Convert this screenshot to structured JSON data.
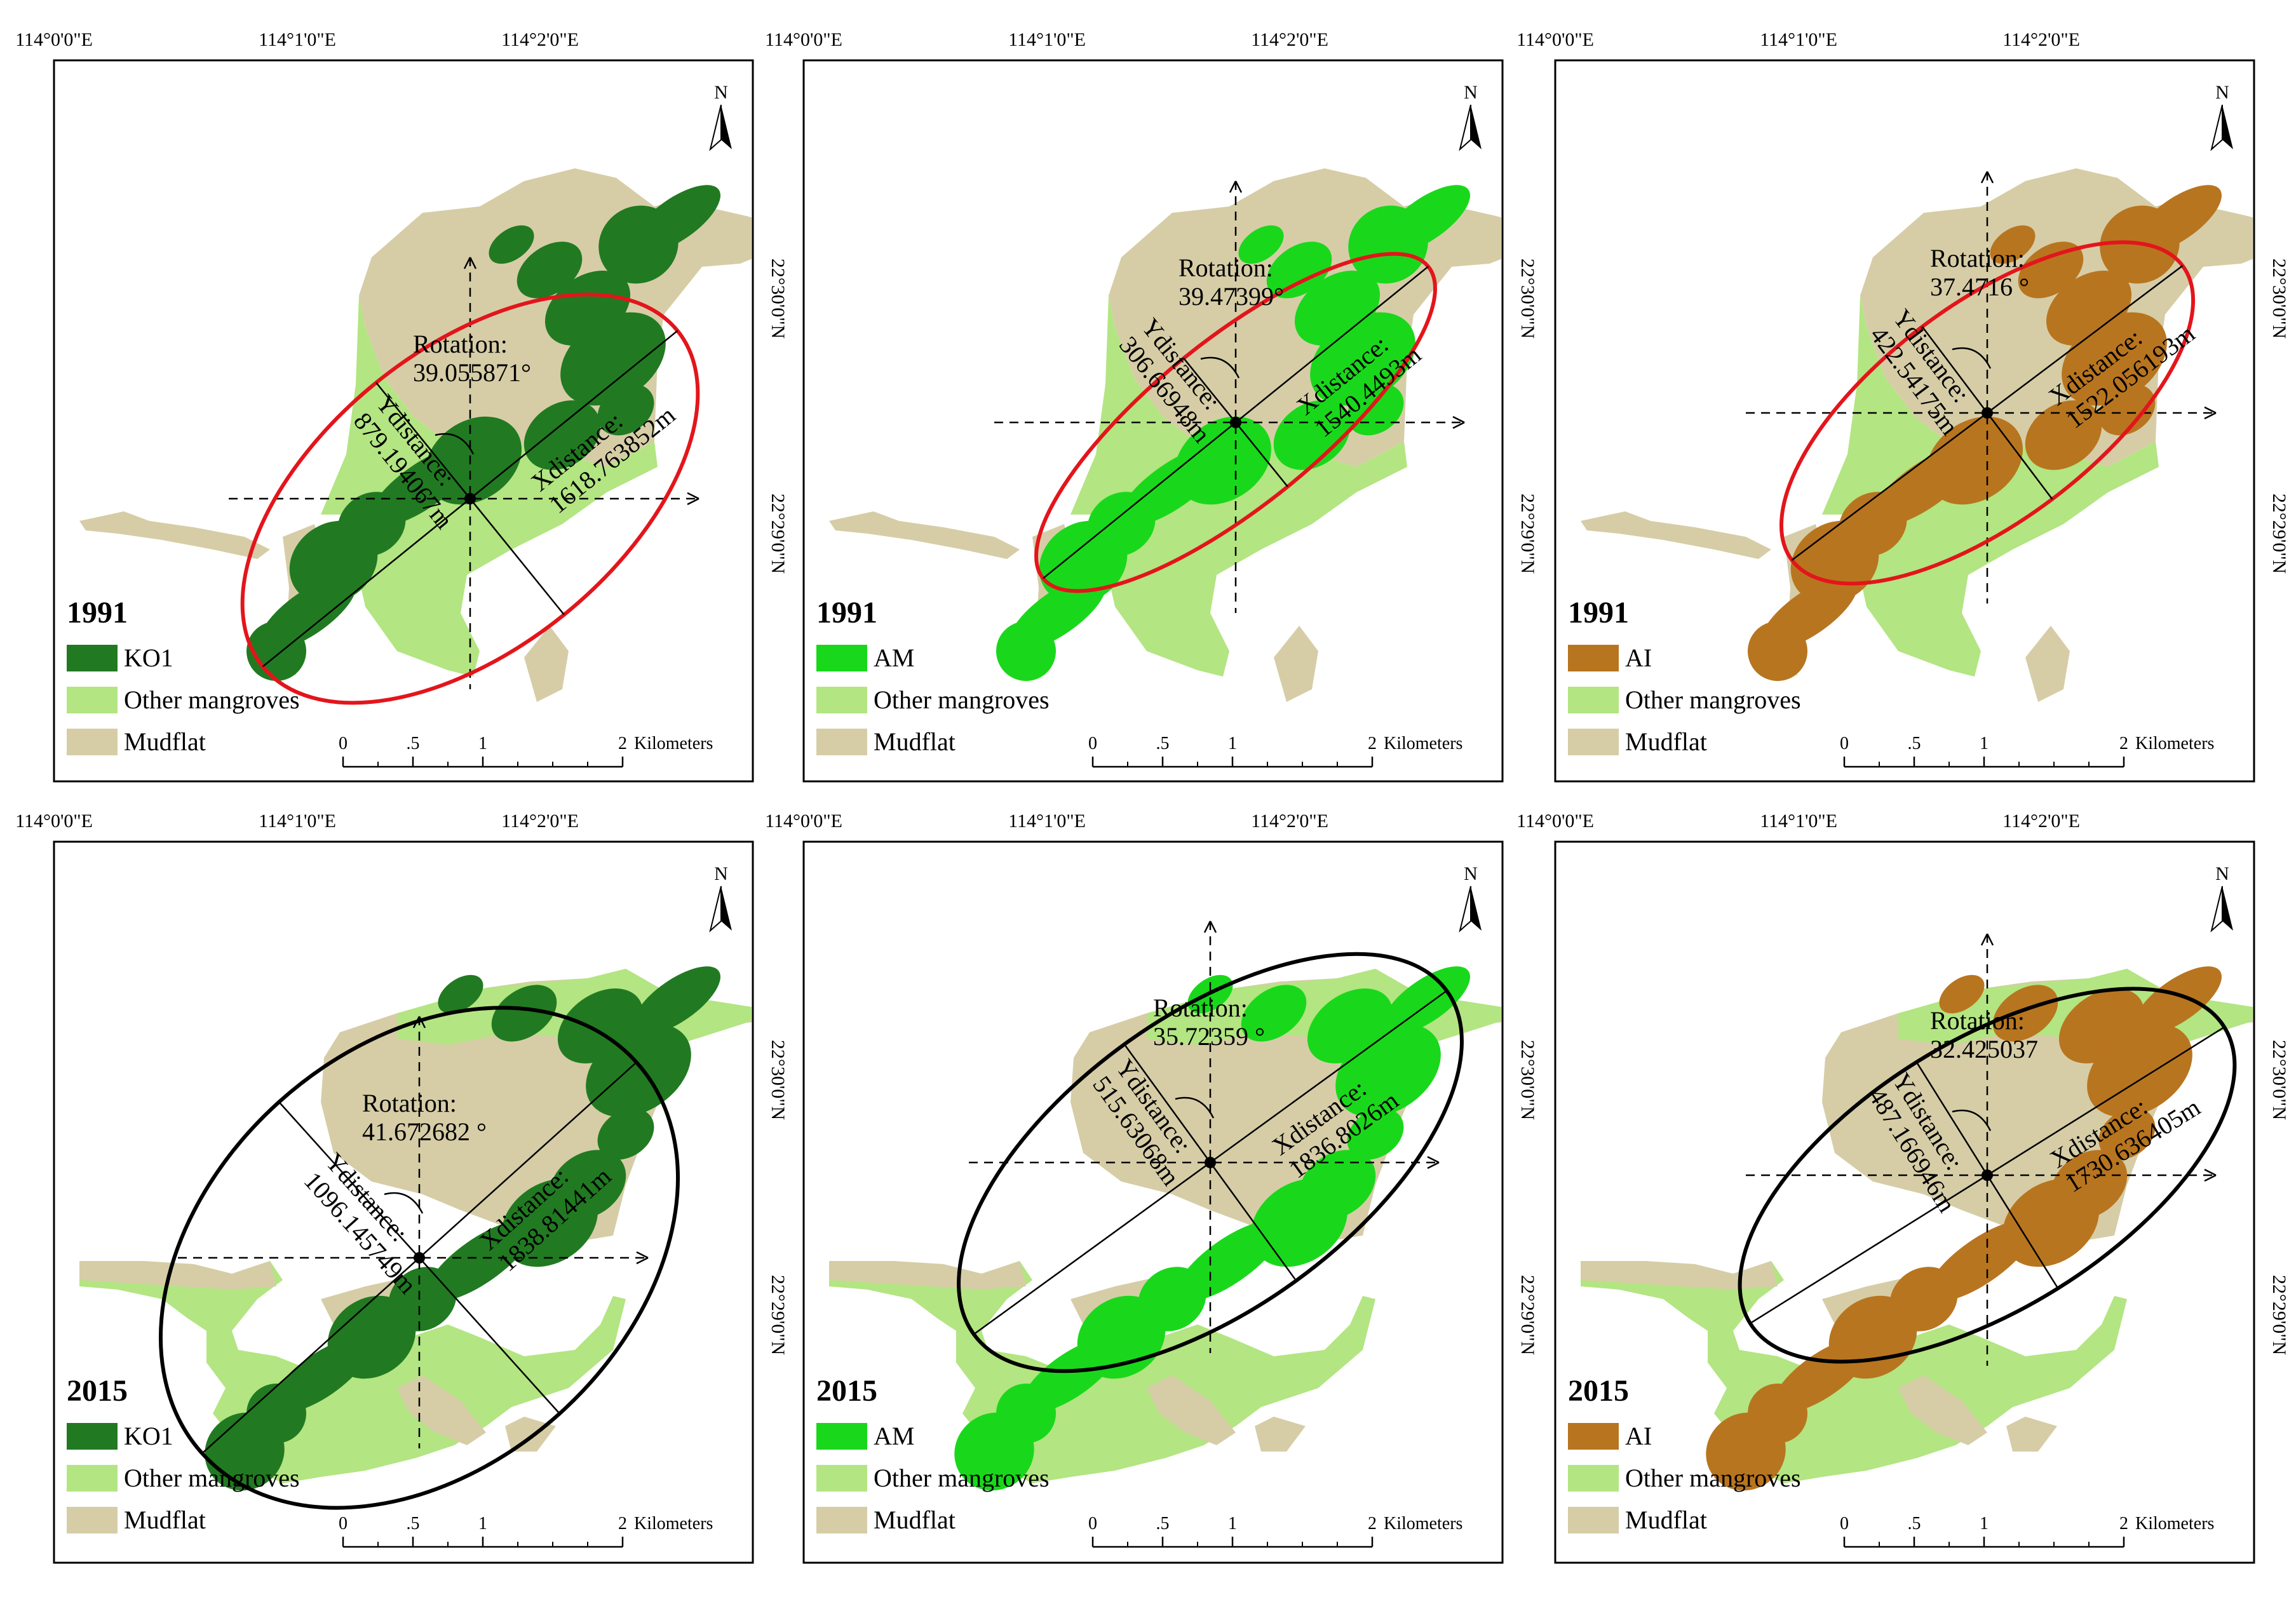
{
  "colors": {
    "mudflat": "#d6cda7",
    "other_mangroves": "#b3e582",
    "ko1": "#217a21",
    "am": "#19d81b",
    "ai": "#b8751f",
    "ellipse_1991": "#e3151b",
    "ellipse_2015": "#000000",
    "frame": "#000000"
  },
  "top_lon_labels": [
    "114°0'0\"E",
    "114°1'0\"E",
    "114°2'0\"E"
  ],
  "right_lat_labels": [
    "22°30'0\"N",
    "22°29'0\"N"
  ],
  "north_label": "N",
  "scale": {
    "ticks": [
      "0",
      ".5",
      "1",
      "2"
    ],
    "unit": "Kilometers"
  },
  "legend": {
    "other_label": "Other mangroves",
    "mudflat_label": "Mudflat"
  },
  "panels": [
    {
      "year": "1991",
      "species": "KO1",
      "species_color_key": "ko1",
      "ellipse_key": "ellipse_1991",
      "rotation_title": "Rotation:",
      "rotation_value": "39.055871°",
      "ydist_title": "Ydistance:",
      "ydist_value": "879.194067m",
      "xdist_title": "Xdistance:",
      "xdist_value": "1618.763852m"
    },
    {
      "year": "1991",
      "species": "AM",
      "species_color_key": "am",
      "ellipse_key": "ellipse_1991",
      "rotation_title": "Rotation:",
      "rotation_value": "39.47399°",
      "ydist_title": "Ydistance:",
      "ydist_value": "306.66948m",
      "xdist_title": "Xdistance:",
      "xdist_value": "1540.4493m"
    },
    {
      "year": "1991",
      "species": "AI",
      "species_color_key": "ai",
      "ellipse_key": "ellipse_1991",
      "rotation_title": "Rotation:",
      "rotation_value": "37.4716 °",
      "ydist_title": "Ydistance:",
      "ydist_value": "422.54175m",
      "xdist_title": "Xdistance:",
      "xdist_value": "1522.056193m"
    },
    {
      "year": "2015",
      "species": "KO1",
      "species_color_key": "ko1",
      "ellipse_key": "ellipse_2015",
      "rotation_title": "Rotation:",
      "rotation_value": "41.672682 °",
      "ydist_title": "Ydistance:",
      "ydist_value": "1096.145749m",
      "xdist_title": "Xdistance:",
      "xdist_value": "1838.81441m"
    },
    {
      "year": "2015",
      "species": "AM",
      "species_color_key": "am",
      "ellipse_key": "ellipse_2015",
      "rotation_title": "Rotation:",
      "rotation_value": "35.72359 °",
      "ydist_title": "Ydistance:",
      "ydist_value": "515.63068m",
      "xdist_title": "Xdistance:",
      "xdist_value": "1836.8026m"
    },
    {
      "year": "2015",
      "species": "AI",
      "species_color_key": "ai",
      "ellipse_key": "ellipse_2015",
      "rotation_title": "Rotation:",
      "rotation_value": "32.425037",
      "ydist_title": "Ydistance:",
      "ydist_value": "487.166946m",
      "xdist_title": "Xdistance:",
      "xdist_value": "1730.636405m"
    }
  ]
}
